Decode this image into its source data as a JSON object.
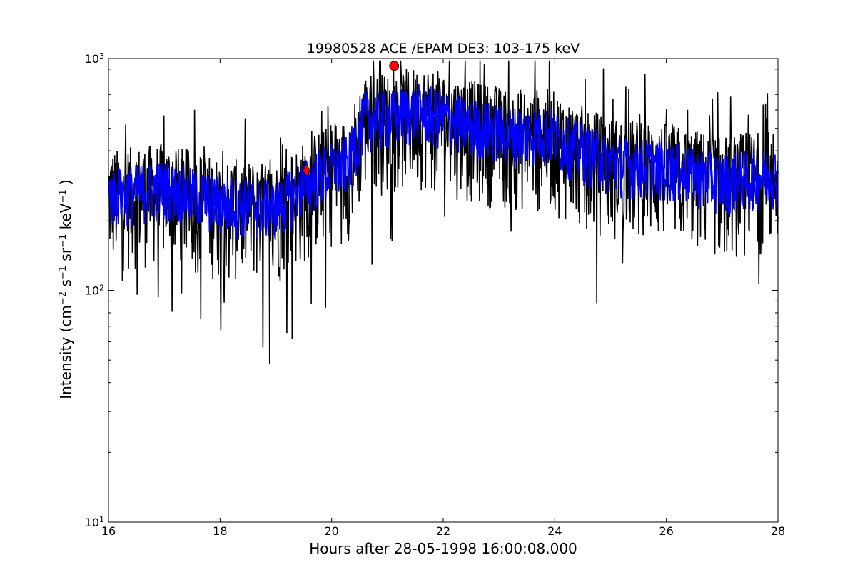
{
  "chart_data": {
    "type": "line",
    "title": "19980528 ACE /EPAM DE3: 103-175 keV",
    "xlabel": "Hours after 28-05-1998 16:00:08.000",
    "ylabel_parts": {
      "prefix": "Intensity (cm",
      "exp1": "−2",
      "s": " s",
      "exp2": "−1",
      "sr": " sr",
      "exp3": "−1",
      "kev": " keV",
      "exp4": "−1",
      "suffix": " )"
    },
    "xlim": [
      16,
      28
    ],
    "ylim": [
      10,
      1000
    ],
    "yscale": "log",
    "x_ticks": [
      "16",
      "18",
      "20",
      "22",
      "24",
      "26",
      "28"
    ],
    "x_tick_values": [
      16,
      18,
      20,
      22,
      24,
      26,
      28
    ],
    "y_ticks": [
      {
        "value": 10,
        "base": "10",
        "exp": "1"
      },
      {
        "value": 100,
        "base": "10",
        "exp": "2"
      },
      {
        "value": 1000,
        "base": "10",
        "exp": "3"
      }
    ],
    "grid": false,
    "series": [
      {
        "color": "#000000",
        "baseline_profile": [
          [
            16,
            260
          ],
          [
            17,
            280
          ],
          [
            18,
            240
          ],
          [
            19,
            230
          ],
          [
            19.8,
            320
          ],
          [
            20.3,
            360
          ],
          [
            20.6,
            560
          ],
          [
            21,
            560
          ],
          [
            21.6,
            600
          ],
          [
            22.5,
            520
          ],
          [
            23.2,
            480
          ],
          [
            23.9,
            480
          ],
          [
            24.3,
            420
          ],
          [
            25,
            360
          ],
          [
            26,
            340
          ],
          [
            27,
            300
          ],
          [
            28,
            320
          ]
        ],
        "scatter_factor": 0.55
      },
      {
        "color": "#0000ff",
        "baseline_profile": [
          [
            16,
            260
          ],
          [
            17,
            280
          ],
          [
            18,
            240
          ],
          [
            19,
            230
          ],
          [
            19.8,
            320
          ],
          [
            20.3,
            360
          ],
          [
            20.6,
            560
          ],
          [
            21,
            560
          ],
          [
            21.6,
            600
          ],
          [
            22.5,
            520
          ],
          [
            23.2,
            480
          ],
          [
            23.9,
            480
          ],
          [
            24.3,
            420
          ],
          [
            25,
            360
          ],
          [
            26,
            340
          ],
          [
            27,
            300
          ],
          [
            28,
            320
          ]
        ],
        "scatter_factor": 0.3
      }
    ],
    "markers": [
      {
        "shape": "diamond",
        "x": 19.55,
        "y": 330,
        "color": "#ff0000"
      },
      {
        "shape": "circle",
        "x": 21.12,
        "y": 930,
        "color": "#ff0000"
      }
    ]
  }
}
